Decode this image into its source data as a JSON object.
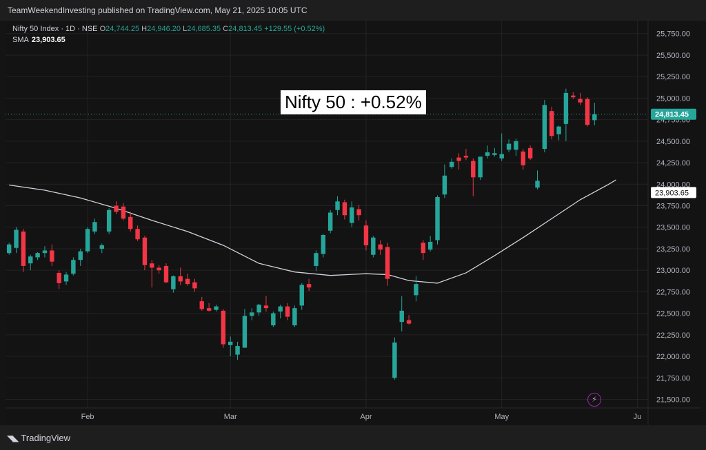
{
  "header": {
    "published_text": "TeamWeekendInvesting published on TradingView.com, May 21, 2025 10:05 UTC"
  },
  "legend": {
    "symbol": "Nifty 50 Index · 1D · NSE",
    "open_label": "O",
    "open": "24,744.25",
    "high_label": "H",
    "high": "24,946.20",
    "low_label": "L",
    "low": "24,685.35",
    "close_label": "C",
    "close": "24,813.45",
    "change": "+129.55 (+0.52%)",
    "sma_label": "SMA",
    "sma_value": "23,903.65"
  },
  "annotation": "Nifty 50 : +0.52%",
  "footer": {
    "brand": "TradingView"
  },
  "colors": {
    "up": "#26a69a",
    "down": "#f23645",
    "sma": "#d1d4dc",
    "grid": "#232323"
  },
  "chart_data": {
    "type": "candlestick",
    "title": "Nifty 50 Index · 1D · NSE",
    "y_axis": {
      "min": 21400,
      "max": 25900,
      "ticks": [
        "21,500.00",
        "21,750.00",
        "22,000.00",
        "22,250.00",
        "22,500.00",
        "22,750.00",
        "23,000.00",
        "23,250.00",
        "23,500.00",
        "23,750.00",
        "24,000.00",
        "24,250.00",
        "24,500.00",
        "24,750.00",
        "25,000.00",
        "25,250.00",
        "25,500.00",
        "25,750.00"
      ],
      "tick_values": [
        21500,
        21750,
        22000,
        22250,
        22500,
        22750,
        23000,
        23250,
        23500,
        23750,
        24000,
        24250,
        24500,
        24750,
        25000,
        25250,
        25500,
        25750
      ]
    },
    "x_axis": {
      "labels": [
        {
          "label": "Feb",
          "index": 11
        },
        {
          "label": "Mar",
          "index": 31
        },
        {
          "label": "Apr",
          "index": 50
        },
        {
          "label": "May",
          "index": 69
        },
        {
          "label": "Ju",
          "index": 88
        }
      ],
      "total_slots": 90
    },
    "price_label": "24,813.45",
    "price_value": 24813.45,
    "sma_label": "23,903.65",
    "sma_value": 23903.65,
    "candles": [
      [
        23200,
        23320,
        23180,
        23300
      ],
      [
        23260,
        23500,
        23200,
        23470
      ],
      [
        23450,
        23480,
        22980,
        23050
      ],
      [
        23080,
        23180,
        23000,
        23160
      ],
      [
        23150,
        23210,
        23120,
        23200
      ],
      [
        23200,
        23280,
        23150,
        23230
      ],
      [
        23230,
        23300,
        23050,
        23100
      ],
      [
        22970,
        23000,
        22780,
        22850
      ],
      [
        22870,
        22980,
        22830,
        22950
      ],
      [
        22960,
        23150,
        22940,
        23120
      ],
      [
        23120,
        23250,
        23050,
        23220
      ],
      [
        23220,
        23500,
        23200,
        23480
      ],
      [
        23450,
        23600,
        23420,
        23560
      ],
      [
        23250,
        23310,
        23200,
        23290
      ],
      [
        23450,
        23720,
        23420,
        23700
      ],
      [
        23750,
        23800,
        23650,
        23680
      ],
      [
        23740,
        23780,
        23580,
        23600
      ],
      [
        23620,
        23680,
        23450,
        23480
      ],
      [
        23480,
        23520,
        23340,
        23360
      ],
      [
        23380,
        23400,
        23000,
        23060
      ],
      [
        23080,
        23120,
        22800,
        23030
      ],
      [
        23030,
        23060,
        22960,
        23000
      ],
      [
        23050,
        23080,
        22850,
        22860
      ],
      [
        22780,
        22940,
        22740,
        22930
      ],
      [
        22930,
        23030,
        22830,
        22870
      ],
      [
        22900,
        22960,
        22820,
        22840
      ],
      [
        22860,
        22900,
        22750,
        22790
      ],
      [
        22640,
        22690,
        22530,
        22550
      ],
      [
        22560,
        22620,
        22520,
        22530
      ],
      [
        22540,
        22600,
        22520,
        22580
      ],
      [
        22530,
        22550,
        22100,
        22140
      ],
      [
        22130,
        22230,
        22000,
        22170
      ],
      [
        22020,
        22170,
        21960,
        22120
      ],
      [
        22100,
        22550,
        22100,
        22470
      ],
      [
        22470,
        22560,
        22420,
        22510
      ],
      [
        22510,
        22610,
        22470,
        22600
      ],
      [
        22590,
        22700,
        22520,
        22560
      ],
      [
        22360,
        22520,
        22340,
        22500
      ],
      [
        22520,
        22600,
        22440,
        22580
      ],
      [
        22580,
        22620,
        22420,
        22460
      ],
      [
        22360,
        22590,
        22340,
        22560
      ],
      [
        22590,
        22850,
        22540,
        22830
      ],
      [
        22840,
        22900,
        22760,
        22800
      ],
      [
        23050,
        23230,
        22990,
        23200
      ],
      [
        23190,
        23420,
        23150,
        23410
      ],
      [
        23460,
        23700,
        23430,
        23670
      ],
      [
        23700,
        23860,
        23640,
        23800
      ],
      [
        23790,
        23820,
        23590,
        23640
      ],
      [
        23550,
        23800,
        23500,
        23730
      ],
      [
        23710,
        23760,
        23580,
        23640
      ],
      [
        23520,
        23580,
        23230,
        23290
      ],
      [
        23180,
        23400,
        23150,
        23380
      ],
      [
        23300,
        23350,
        23180,
        23240
      ],
      [
        23270,
        23320,
        22820,
        22900
      ],
      [
        21750,
        22220,
        21730,
        22160
      ],
      [
        22400,
        22700,
        22290,
        22530
      ],
      [
        22420,
        22480,
        22370,
        22380
      ],
      [
        22710,
        22930,
        22640,
        22840
      ],
      [
        23320,
        23350,
        23120,
        23200
      ],
      [
        23240,
        23400,
        23220,
        23330
      ],
      [
        23350,
        23870,
        23300,
        23850
      ],
      [
        23880,
        24230,
        23840,
        24100
      ],
      [
        24200,
        24300,
        24180,
        24260
      ],
      [
        24310,
        24360,
        24170,
        24270
      ],
      [
        24330,
        24410,
        24280,
        24310
      ],
      [
        24270,
        24300,
        23860,
        24080
      ],
      [
        24080,
        24320,
        24050,
        24320
      ],
      [
        24330,
        24450,
        24300,
        24370
      ],
      [
        24340,
        24420,
        24320,
        24360
      ],
      [
        24300,
        24590,
        24270,
        24350
      ],
      [
        24400,
        24520,
        24370,
        24470
      ],
      [
        24400,
        24530,
        24330,
        24500
      ],
      [
        24380,
        24410,
        24170,
        24220
      ],
      [
        24420,
        24450,
        24280,
        24300
      ],
      [
        23960,
        24160,
        23940,
        24040
      ],
      [
        24410,
        24980,
        24370,
        24920
      ],
      [
        24850,
        24900,
        24520,
        24560
      ],
      [
        24580,
        24680,
        24510,
        24670
      ],
      [
        24700,
        25110,
        24500,
        25060
      ],
      [
        25030,
        25070,
        24990,
        25010
      ],
      [
        24990,
        25060,
        24920,
        24950
      ],
      [
        24990,
        25010,
        24670,
        24690
      ],
      [
        24744,
        24946,
        24685,
        24813
      ]
    ],
    "sma": [
      [
        0,
        23990
      ],
      [
        5,
        23930
      ],
      [
        10,
        23840
      ],
      [
        15,
        23720
      ],
      [
        20,
        23580
      ],
      [
        25,
        23450
      ],
      [
        30,
        23290
      ],
      [
        35,
        23080
      ],
      [
        40,
        22980
      ],
      [
        45,
        22940
      ],
      [
        50,
        22960
      ],
      [
        53,
        22950
      ],
      [
        56,
        22880
      ],
      [
        60,
        22850
      ],
      [
        64,
        22970
      ],
      [
        68,
        23170
      ],
      [
        72,
        23380
      ],
      [
        76,
        23600
      ],
      [
        80,
        23820
      ],
      [
        84,
        24000
      ],
      [
        85,
        24050
      ]
    ]
  }
}
